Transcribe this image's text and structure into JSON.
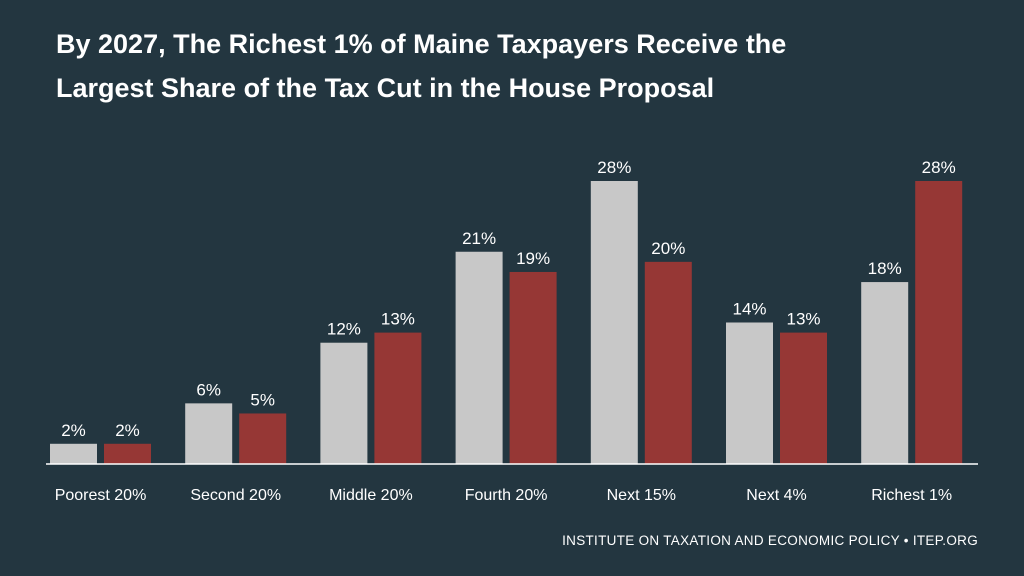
{
  "title_line1": "By 2027, The Richest 1% of Maine Taxpayers Receive the",
  "title_line2": "Largest Share of the Tax Cut in the House Proposal",
  "footer": "INSTITUTE ON TAXATION AND ECONOMIC POLICY • ITEP.ORG",
  "colors": {
    "background": "#233640",
    "series_a": "#c8c8c8",
    "series_b": "#963735",
    "baseline": "#ffffff",
    "text": "#ffffff"
  },
  "chart_data": {
    "type": "bar",
    "title": "By 2027, The Richest 1% of Maine Taxpayers Receive the Largest Share of the Tax Cut in the House Proposal",
    "categories": [
      "Poorest 20%",
      "Second 20%",
      "Middle 20%",
      "Fourth 20%",
      "Next 15%",
      "Next 4%",
      "Richest 1%"
    ],
    "series": [
      {
        "values": [
          2,
          6,
          12,
          21,
          28,
          14,
          18
        ],
        "labels": [
          "2%",
          "6%",
          "12%",
          "21%",
          "28%",
          "14%",
          "18%"
        ],
        "color": "#c8c8c8"
      },
      {
        "values": [
          2,
          5,
          13,
          19,
          20,
          13,
          28
        ],
        "labels": [
          "2%",
          "5%",
          "13%",
          "19%",
          "20%",
          "13%",
          "28%"
        ],
        "color": "#963735"
      }
    ],
    "ylim": [
      0,
      28
    ],
    "grid": false,
    "legend": "none"
  }
}
